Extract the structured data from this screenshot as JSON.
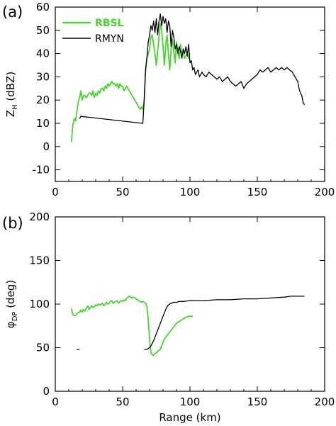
{
  "colors": {
    "RBSL": "#44d62c",
    "RMYN": "#000000"
  },
  "chart_data": [
    {
      "panel": "(a)",
      "type": "line",
      "ylabel_main": "Z",
      "ylabel_sub": "H",
      "ylabel_unit": " (dBZ)",
      "xlabel": "",
      "xlim": [
        0,
        200
      ],
      "ylim": [
        -15,
        60
      ],
      "xticks": [
        0,
        50,
        100,
        150,
        200
      ],
      "yticks": [
        -10,
        0,
        10,
        20,
        30,
        40,
        50,
        60
      ],
      "legend": "top-left",
      "series": [
        {
          "name": "RBSL",
          "color_key": "RBSL",
          "x": [
            12,
            13,
            14,
            15,
            16,
            17,
            18,
            19,
            20,
            21,
            22,
            23,
            24,
            25,
            26,
            27,
            28,
            29,
            30,
            31,
            32,
            33,
            34,
            35,
            36,
            37,
            38,
            39,
            40,
            41,
            42,
            43,
            44,
            45,
            46,
            47,
            48,
            49,
            50,
            51,
            52,
            53,
            54,
            55,
            56,
            57,
            58,
            59,
            60,
            61,
            62,
            63,
            64,
            65,
            66,
            67,
            68,
            69,
            70,
            71,
            72,
            73,
            74,
            75,
            76,
            77,
            78,
            79,
            80,
            81,
            82,
            83,
            84,
            85,
            86,
            87,
            88,
            89,
            90,
            91,
            92,
            93,
            94,
            95,
            96,
            97,
            98,
            99,
            100
          ],
          "y": [
            2,
            9,
            12,
            11,
            15,
            19,
            21,
            24,
            20,
            22,
            22,
            21,
            22,
            23,
            23,
            22,
            24,
            21,
            23,
            22,
            24,
            23,
            25,
            25,
            24,
            26,
            25,
            27,
            26,
            27,
            28,
            27,
            27,
            26,
            27,
            25,
            27,
            26,
            26,
            24,
            25,
            26,
            25,
            24,
            23,
            22,
            21,
            20,
            19,
            18,
            17,
            16,
            17,
            16,
            20,
            32,
            38,
            40,
            42,
            47,
            48,
            44,
            40,
            35,
            41,
            47,
            53,
            50,
            43,
            35,
            44,
            48,
            40,
            33,
            42,
            46,
            41,
            36,
            45,
            41,
            38,
            44,
            40,
            41,
            38,
            39,
            40,
            38,
            40
          ]
        },
        {
          "name": "RMYN",
          "color_key": "RMYN",
          "x": [
            18,
            19,
            65,
            66,
            67,
            68,
            69,
            70,
            71,
            72,
            73,
            74,
            75,
            76,
            77,
            78,
            79,
            80,
            81,
            82,
            83,
            84,
            85,
            86,
            87,
            88,
            89,
            90,
            91,
            92,
            93,
            94,
            95,
            96,
            97,
            98,
            99,
            100,
            101,
            102,
            103,
            104,
            105,
            106,
            107,
            108,
            109,
            110,
            112,
            114,
            116,
            118,
            120,
            122,
            124,
            126,
            128,
            130,
            132,
            134,
            136,
            138,
            140,
            142,
            144,
            146,
            148,
            150,
            152,
            154,
            156,
            158,
            160,
            162,
            164,
            166,
            168,
            170,
            172,
            174,
            176,
            178,
            180,
            181,
            182,
            183,
            184,
            185
          ],
          "y": [
            12,
            13,
            10,
            20,
            33,
            38,
            45,
            48,
            52,
            50,
            54,
            49,
            55,
            48,
            54,
            57,
            52,
            56,
            53,
            55,
            49,
            54,
            52,
            43,
            50,
            47,
            42,
            44,
            40,
            43,
            41,
            38,
            42,
            40,
            43,
            39,
            44,
            36,
            37,
            33,
            34,
            31,
            32,
            33,
            30,
            31,
            32,
            31,
            30,
            32,
            31,
            30,
            29,
            30,
            28,
            29,
            30,
            28,
            27,
            26,
            27,
            28,
            25,
            27,
            28,
            29,
            30,
            31,
            33,
            32,
            33,
            34,
            32,
            33,
            34,
            33,
            34,
            33,
            34,
            33,
            32,
            30,
            28,
            25,
            23,
            22,
            19,
            18
          ]
        }
      ]
    },
    {
      "panel": "(b)",
      "type": "line",
      "ylabel_main": "φ",
      "ylabel_sub": "DP",
      "ylabel_unit": " (deg)",
      "xlabel": "Range (km)",
      "xlim": [
        0,
        200
      ],
      "ylim": [
        0,
        200
      ],
      "xticks": [
        0,
        50,
        100,
        150,
        200
      ],
      "yticks": [
        0,
        50,
        100,
        150,
        200
      ],
      "series": [
        {
          "name": "RBSL",
          "color_key": "RBSL",
          "x": [
            12,
            13,
            14,
            15,
            16,
            17,
            18,
            19,
            20,
            21,
            22,
            23,
            24,
            25,
            26,
            27,
            28,
            29,
            30,
            31,
            32,
            33,
            34,
            35,
            36,
            37,
            38,
            39,
            40,
            41,
            42,
            43,
            44,
            45,
            46,
            47,
            48,
            49,
            50,
            51,
            52,
            53,
            54,
            55,
            56,
            57,
            58,
            59,
            60,
            61,
            62,
            63,
            64,
            65,
            66,
            67,
            68,
            69,
            70,
            71,
            72,
            73,
            74,
            75,
            76,
            77,
            78,
            79,
            80,
            81,
            82,
            83,
            84,
            85,
            86,
            87,
            88,
            89,
            90,
            91,
            92,
            93,
            94,
            95,
            96,
            97,
            98,
            99,
            100,
            101,
            102
          ],
          "y": [
            95,
            88,
            87,
            87,
            89,
            90,
            91,
            93,
            91,
            94,
            92,
            95,
            98,
            94,
            96,
            98,
            96,
            97,
            99,
            98,
            100,
            99,
            100,
            101,
            98,
            100,
            102,
            100,
            101,
            103,
            104,
            101,
            102,
            103,
            104,
            101,
            103,
            104,
            103,
            105,
            104,
            107,
            108,
            109,
            108,
            107,
            108,
            107,
            106,
            105,
            104,
            103,
            102,
            103,
            102,
            101,
            98,
            82,
            60,
            44,
            42,
            41,
            43,
            44,
            46,
            47,
            48,
            52,
            56,
            60,
            62,
            64,
            66,
            68,
            70,
            72,
            74,
            76,
            78,
            79,
            80,
            81,
            82,
            83,
            84,
            85,
            85,
            86,
            86,
            86,
            86
          ]
        },
        {
          "name": "RMYN",
          "color_key": "RMYN",
          "x": [
            66,
            67,
            68,
            69,
            70,
            71,
            72,
            73,
            74,
            75,
            76,
            77,
            78,
            79,
            80,
            81,
            82,
            83,
            84,
            85,
            86,
            88,
            90,
            92,
            95,
            100,
            110,
            120,
            130,
            140,
            150,
            160,
            170,
            175,
            180,
            185
          ],
          "y": [
            48,
            48,
            48,
            49,
            50,
            52,
            55,
            58,
            62,
            66,
            70,
            74,
            78,
            82,
            86,
            90,
            94,
            97,
            99,
            100,
            101,
            102,
            102,
            103,
            103,
            104,
            104,
            105,
            105,
            106,
            106,
            107,
            108,
            109,
            109,
            109
          ]
        },
        {
          "name": "",
          "color_key": "RMYN",
          "x": [
            16,
            18
          ],
          "y": [
            48,
            48
          ]
        }
      ]
    }
  ]
}
